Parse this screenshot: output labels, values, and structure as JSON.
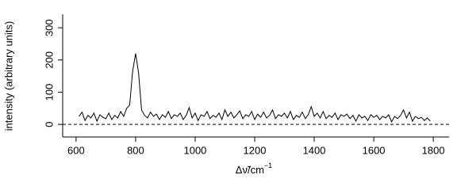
{
  "chart_data": {
    "type": "line",
    "x_label": "Δν̃/cm",
    "x_label_superscript": "−1",
    "y_label": "intensity (arbitrary units)",
    "x": [
      610,
      620,
      630,
      640,
      650,
      660,
      670,
      680,
      690,
      700,
      710,
      720,
      730,
      740,
      750,
      760,
      770,
      780,
      790,
      800,
      810,
      820,
      830,
      840,
      850,
      860,
      870,
      880,
      890,
      900,
      910,
      920,
      930,
      940,
      950,
      960,
      970,
      980,
      990,
      1000,
      1010,
      1020,
      1030,
      1040,
      1050,
      1060,
      1070,
      1080,
      1090,
      1100,
      1110,
      1120,
      1130,
      1140,
      1150,
      1160,
      1170,
      1180,
      1190,
      1200,
      1210,
      1220,
      1230,
      1240,
      1250,
      1260,
      1270,
      1280,
      1290,
      1300,
      1310,
      1320,
      1330,
      1340,
      1350,
      1360,
      1370,
      1380,
      1390,
      1400,
      1410,
      1420,
      1430,
      1440,
      1450,
      1460,
      1470,
      1480,
      1490,
      1500,
      1510,
      1520,
      1530,
      1540,
      1550,
      1560,
      1570,
      1580,
      1590,
      1600,
      1610,
      1620,
      1630,
      1640,
      1650,
      1660,
      1670,
      1680,
      1690,
      1700,
      1710,
      1720,
      1730,
      1740,
      1750,
      1760,
      1770,
      1780,
      1790
    ],
    "values": [
      25,
      38,
      12,
      28,
      20,
      35,
      10,
      30,
      22,
      18,
      35,
      15,
      28,
      20,
      40,
      25,
      50,
      60,
      165,
      220,
      160,
      45,
      28,
      20,
      38,
      25,
      32,
      15,
      30,
      22,
      40,
      18,
      30,
      25,
      35,
      15,
      28,
      52,
      20,
      35,
      12,
      30,
      25,
      40,
      18,
      28,
      22,
      35,
      15,
      45,
      25,
      38,
      20,
      30,
      42,
      18,
      30,
      25,
      40,
      15,
      32,
      22,
      38,
      20,
      28,
      45,
      18,
      30,
      25,
      35,
      20,
      40,
      15,
      28,
      22,
      38,
      18,
      30,
      55,
      25,
      35,
      20,
      40,
      18,
      28,
      22,
      35,
      15,
      30,
      25,
      32,
      18,
      28,
      10,
      30,
      20,
      25,
      12,
      30,
      22,
      28,
      15,
      25,
      20,
      30,
      8,
      25,
      18,
      28,
      45,
      20,
      38,
      10,
      25,
      18,
      22,
      12,
      20,
      10
    ],
    "color": "#000000",
    "hline": 0,
    "xlim": [
      555,
      1853
    ],
    "ylim": [
      -39,
      342
    ],
    "xticks": [
      600,
      800,
      1000,
      1200,
      1400,
      1600,
      1800
    ],
    "yticks": [
      0,
      100,
      200,
      300
    ]
  }
}
